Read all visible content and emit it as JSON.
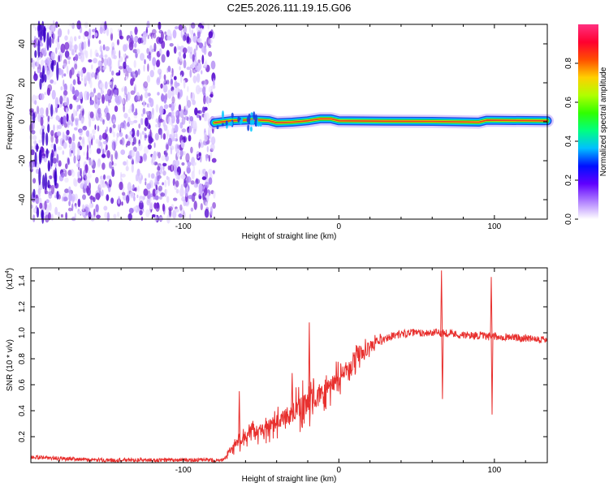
{
  "title": "C2E5.2026.111.19.15.G06",
  "colors": {
    "snr_line": "#e8302e",
    "scatter": "#7a2fd6",
    "band_core": "#e03a2a",
    "band_mid": "#1bd13a",
    "band_outer": "#1040e0",
    "frame": "#000000"
  },
  "chart_data": [
    {
      "type": "heatmap",
      "name": "spectrogram",
      "xlabel": "Height of straight line (km)",
      "ylabel": "Frequency (Hz)",
      "xlim": [
        -198,
        134
      ],
      "ylim": [
        -50,
        50
      ],
      "xticks": [
        -100,
        0,
        100
      ],
      "xtick_labels": [
        "-100",
        "0",
        "100"
      ],
      "yticks": [
        40,
        20,
        0,
        -20,
        -40
      ],
      "ytick_labels": [
        "40",
        "20",
        "0",
        "-20",
        "-40"
      ],
      "noise_region_x": [
        -198,
        -80
      ],
      "noise_level": "low",
      "signal_band": {
        "x_start": -80,
        "x_end": 134,
        "frequency_hz": [
          [
            -80,
            -0.5
          ],
          [
            -70,
            0.5
          ],
          [
            -55,
            1.0
          ],
          [
            -45,
            0.6
          ],
          [
            -40,
            -0.5
          ],
          [
            -30,
            -0.2
          ],
          [
            -20,
            0.5
          ],
          [
            -12,
            1.5
          ],
          [
            -5,
            1.5
          ],
          [
            0,
            0.5
          ],
          [
            30,
            0.3
          ],
          [
            60,
            0.2
          ],
          [
            90,
            -0.2
          ],
          [
            95,
            0.8
          ],
          [
            134,
            0.5
          ]
        ],
        "amplitude": "high"
      },
      "colorbar": {
        "label": "Normalized spectral amplitude",
        "range": [
          0,
          1
        ],
        "ticks": [
          0.0,
          0.2,
          0.4,
          0.6,
          0.8
        ],
        "tick_labels": [
          "0.0",
          "0.2",
          "0.4",
          "0.6",
          "0.8"
        ],
        "colors": [
          "#ffffff",
          "#b080ff",
          "#6000ff",
          "#0010ff",
          "#00c0ff",
          "#00ff80",
          "#30ff00",
          "#b0ff00",
          "#ffd000",
          "#ff5000",
          "#ff0030",
          "#ff3080"
        ]
      }
    },
    {
      "type": "line",
      "name": "snr",
      "xlabel": "Height of straight line (km)",
      "ylabel": "SNR (10 * v/v)",
      "y_scale_note": "(x10",
      "y_scale_exp": "4",
      "y_scale_close": ")",
      "xlim": [
        -198,
        134
      ],
      "ylim": [
        0,
        1.5
      ],
      "xticks": [
        -100,
        0,
        100
      ],
      "xtick_labels": [
        "-100",
        "0",
        "100"
      ],
      "yticks": [
        0.2,
        0.4,
        0.6,
        0.8,
        1.0,
        1.2,
        1.4
      ],
      "ytick_labels": [
        "0.2",
        "0.4",
        "0.6",
        "0.8",
        "1.0",
        "1.2",
        "1.4"
      ],
      "series": [
        {
          "name": "SNR",
          "x": [
            -198,
            -190,
            -180,
            -170,
            -160,
            -150,
            -140,
            -130,
            -120,
            -110,
            -100,
            -90,
            -80,
            -75,
            -70,
            -65,
            -60,
            -55,
            -50,
            -45,
            -40,
            -35,
            -30,
            -25,
            -20,
            -15,
            -10,
            -5,
            0,
            5,
            10,
            15,
            20,
            25,
            30,
            35,
            40,
            45,
            50,
            55,
            60,
            65,
            70,
            75,
            80,
            85,
            90,
            95,
            100,
            105,
            110,
            115,
            120,
            125,
            130,
            134
          ],
          "y": [
            0.04,
            0.04,
            0.03,
            0.03,
            0.02,
            0.02,
            0.02,
            0.02,
            0.02,
            0.02,
            0.02,
            0.02,
            0.02,
            0.02,
            0.08,
            0.14,
            0.2,
            0.22,
            0.25,
            0.27,
            0.3,
            0.34,
            0.38,
            0.42,
            0.46,
            0.5,
            0.55,
            0.6,
            0.66,
            0.72,
            0.78,
            0.84,
            0.89,
            0.93,
            0.96,
            0.98,
            0.99,
            1.0,
            1.0,
            1.0,
            1.0,
            1.0,
            1.0,
            0.99,
            0.98,
            0.98,
            0.98,
            0.97,
            0.97,
            0.97,
            0.97,
            0.96,
            0.96,
            0.96,
            0.95,
            0.95
          ]
        }
      ],
      "spikes": [
        {
          "x": -19,
          "y": 1.08
        },
        {
          "x": 66,
          "y": 1.48
        },
        {
          "x": 66.6,
          "y": 0.49
        },
        {
          "x": 98,
          "y": 1.43
        },
        {
          "x": 98.5,
          "y": 0.37
        },
        {
          "x": -64,
          "y": 0.55
        },
        {
          "x": -30,
          "y": 0.69
        }
      ]
    }
  ]
}
